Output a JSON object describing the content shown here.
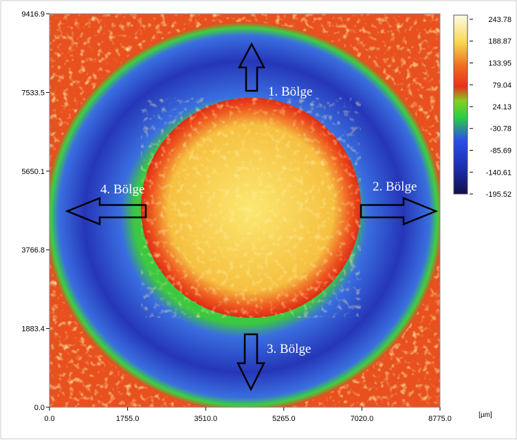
{
  "chart_data": {
    "type": "heatmap",
    "xlim": [
      0,
      8775
    ],
    "ylim": [
      0,
      9416.9
    ],
    "xticks": [
      {
        "value": 0,
        "label": "0.0"
      },
      {
        "value": 1755,
        "label": "1755.0"
      },
      {
        "value": 3510,
        "label": "3510.0"
      },
      {
        "value": 5265,
        "label": "5265.0"
      },
      {
        "value": 7020,
        "label": "7020.0"
      },
      {
        "value": 8775,
        "label": "8775.0"
      }
    ],
    "yticks": [
      {
        "value": 0,
        "label": "0.0"
      },
      1883.4,
      3766.8,
      5650.1,
      7533.5,
      9416.9
    ],
    "x_unit": "[µm]",
    "colorbar": {
      "lim": [
        -195.52,
        243.78
      ],
      "ticks": [
        243.78,
        188.87,
        133.95,
        79.04,
        24.13,
        -30.78,
        -85.69,
        -140.61,
        -195.52
      ]
    },
    "annotations": [
      "1. Bölge",
      "2. Bölge",
      "3. Bölge",
      "4. Bölge"
    ]
  }
}
